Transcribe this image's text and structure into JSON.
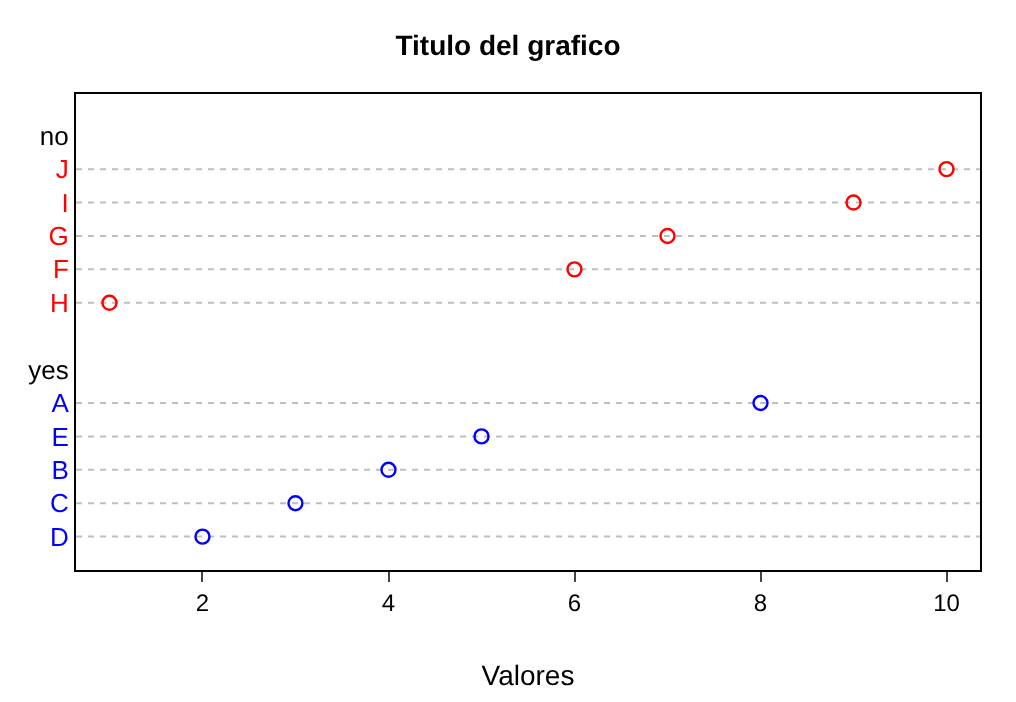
{
  "chart_data": {
    "type": "scatter",
    "title": "Titulo del grafico",
    "xlabel": "Valores",
    "categories": [
      "no",
      "J",
      "I",
      "G",
      "F",
      "H",
      null,
      "yes",
      "A",
      "E",
      "B",
      "C",
      "D"
    ],
    "series": [
      {
        "color": "#ff0000",
        "values": [
          null,
          10,
          9,
          7,
          6,
          1,
          null,
          null,
          null,
          null,
          null,
          null,
          null
        ]
      },
      {
        "color": "#0000ff",
        "values": [
          null,
          null,
          null,
          null,
          null,
          null,
          null,
          null,
          8,
          5,
          4,
          3,
          2
        ]
      }
    ],
    "xlim": [
      0.64,
      10.36
    ],
    "xticks": [
      2,
      4,
      6,
      8,
      10
    ],
    "grid": "y",
    "marker": "circle",
    "orientation": "horizontal"
  }
}
